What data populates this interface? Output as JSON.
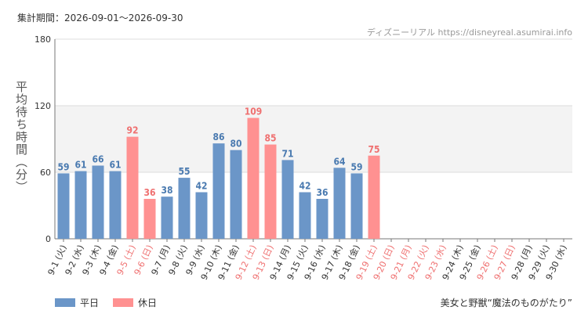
{
  "header": {
    "period": "集計期間：2026-09-01～2026-09-30",
    "credit": "ディズニーリアル https://disneyreal.asumirai.info"
  },
  "legend": {
    "weekday": "平日",
    "holiday": "休日"
  },
  "footer": {
    "attraction": "美女と野獣“魔法のものがたり”"
  },
  "colors": {
    "weekday": "#6b96c8",
    "holiday": "#ff9191",
    "weekday_label": "#4a7ab0",
    "holiday_label": "#ef7070"
  },
  "chart_data": {
    "type": "bar",
    "ylabel": "平均待ち時間（分）",
    "ylim": [
      0,
      180
    ],
    "yticks": [
      0,
      60,
      120,
      180
    ],
    "bands": [
      [
        60,
        120
      ]
    ],
    "categories": [
      "9-1 (火)",
      "9-2 (水)",
      "9-3 (木)",
      "9-4 (金)",
      "9-5 (土)",
      "9-6 (日)",
      "9-7 (月)",
      "9-8 (火)",
      "9-9 (水)",
      "9-10 (木)",
      "9-11 (金)",
      "9-12 (土)",
      "9-13 (日)",
      "9-14 (月)",
      "9-15 (火)",
      "9-16 (水)",
      "9-17 (木)",
      "9-18 (金)",
      "9-19 (土)",
      "9-20 (日)",
      "9-21 (月)",
      "9-22 (火)",
      "9-23 (水)",
      "9-24 (木)",
      "9-25 (金)",
      "9-26 (土)",
      "9-27 (日)",
      "9-28 (月)",
      "9-29 (火)",
      "9-30 (水)"
    ],
    "day_types": [
      "weekday",
      "weekday",
      "weekday",
      "weekday",
      "holiday",
      "holiday",
      "weekday",
      "weekday",
      "weekday",
      "weekday",
      "weekday",
      "holiday",
      "holiday",
      "weekday",
      "weekday",
      "weekday",
      "weekday",
      "weekday",
      "holiday",
      "holiday",
      "holiday",
      "holiday",
      "holiday",
      "weekday",
      "weekday",
      "holiday",
      "holiday",
      "weekday",
      "weekday",
      "weekday"
    ],
    "values": [
      59,
      61,
      66,
      61,
      92,
      36,
      38,
      55,
      42,
      86,
      80,
      109,
      85,
      71,
      42,
      36,
      64,
      59,
      75,
      null,
      null,
      null,
      null,
      null,
      null,
      null,
      null,
      null,
      null,
      null
    ]
  }
}
